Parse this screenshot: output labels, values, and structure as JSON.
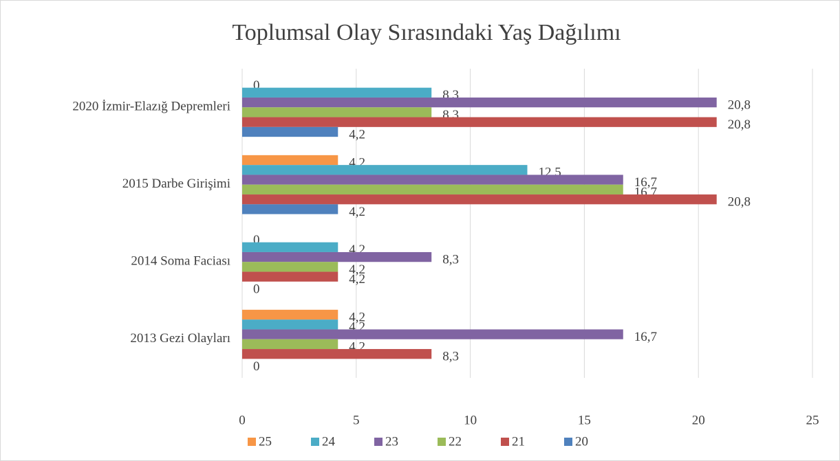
{
  "chart_data": {
    "type": "bar",
    "orientation": "horizontal",
    "title": "Toplumsal Olay Sırasındaki Yaş Dağılımı",
    "categories": [
      "2013 Gezi Olayları",
      "2014 Soma Faciası",
      "2015 Darbe Girişimi",
      "2020 İzmir-Elazığ Depremleri"
    ],
    "series": [
      {
        "name": "25",
        "color": "#f79646",
        "values": [
          4.2,
          0,
          4.2,
          0
        ],
        "value_labels": [
          "4,2",
          "0",
          "4,2",
          "0"
        ]
      },
      {
        "name": "24",
        "color": "#4bacc6",
        "values": [
          4.2,
          4.2,
          12.5,
          8.3
        ],
        "value_labels": [
          "4,2",
          "4,2",
          "12,5",
          "8,3"
        ]
      },
      {
        "name": "23",
        "color": "#8064a2",
        "values": [
          16.7,
          8.3,
          16.7,
          20.8
        ],
        "value_labels": [
          "16,7",
          "8,3",
          "16,7",
          "20,8"
        ]
      },
      {
        "name": "22",
        "color": "#9bbb59",
        "values": [
          4.2,
          4.2,
          16.7,
          8.3
        ],
        "value_labels": [
          "4,2",
          "4,2",
          "16,7",
          "8,3"
        ]
      },
      {
        "name": "21",
        "color": "#c0504d",
        "values": [
          8.3,
          4.2,
          20.8,
          20.8
        ],
        "value_labels": [
          "8,3",
          "4,2",
          "20,8",
          "20,8"
        ]
      },
      {
        "name": "20",
        "color": "#4f81bd",
        "values": [
          0,
          0,
          4.2,
          4.2
        ],
        "value_labels": [
          "0",
          "0",
          "4,2",
          "4,2"
        ]
      }
    ],
    "xlim": [
      0,
      25
    ],
    "xticks": [
      0,
      5,
      10,
      15,
      20,
      25
    ],
    "grid": true,
    "legend": "bottom"
  }
}
